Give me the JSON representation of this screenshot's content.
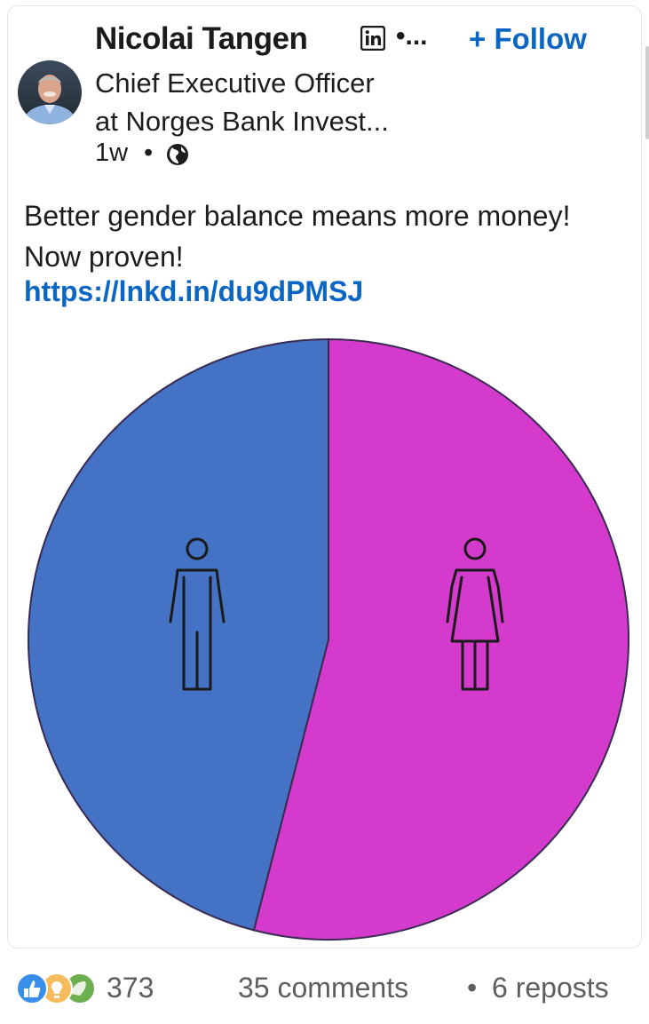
{
  "author": {
    "name": "Nicolai Tangen",
    "headline_line1": "Chief Executive Officer",
    "headline_line2": "at Norges Bank Invest...",
    "overflow": "•...",
    "follow_label": "+ Follow"
  },
  "meta": {
    "time": "1w",
    "dot": "•",
    "visibility_icon": "globe-icon"
  },
  "post": {
    "text": "Better gender balance means more money! Now proven!",
    "link": "https://lnkd.in/du9dPMSJ"
  },
  "chart_data": {
    "type": "pie",
    "series": [
      {
        "value": 46,
        "color": "#4472c4",
        "icon": "man-icon"
      },
      {
        "value": 54,
        "color": "#d43bcd",
        "icon": "woman-icon"
      }
    ]
  },
  "footer": {
    "reaction_icons": [
      "like-icon",
      "insightful-icon",
      "celebrate-icon"
    ],
    "reaction_count": "373",
    "comments": "35 comments",
    "dot": "•",
    "reposts": "6 reposts"
  },
  "colors": {
    "link_blue": "#0a66c2",
    "male_blue": "#4472c4",
    "female_magenta": "#d43bcd"
  }
}
